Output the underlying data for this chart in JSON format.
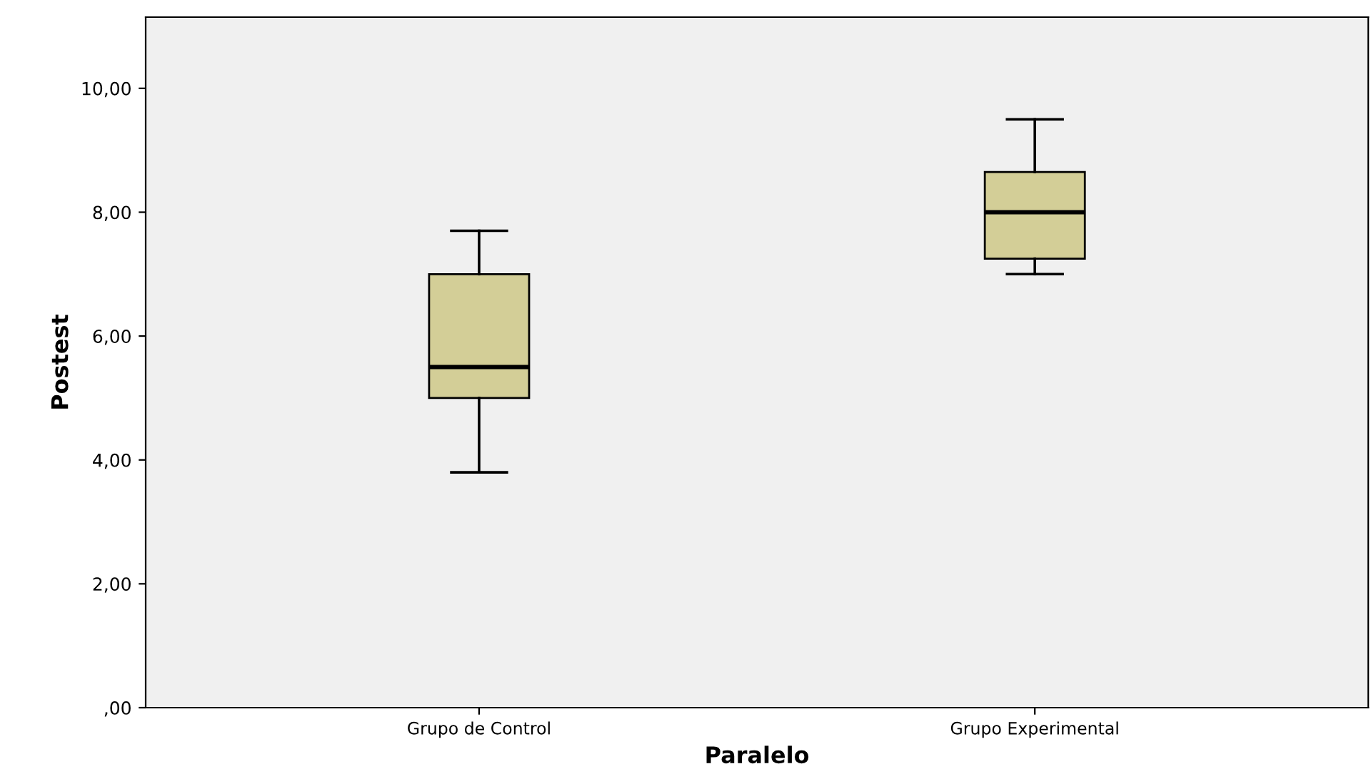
{
  "chart_data": {
    "type": "box",
    "xlabel": "Paralelo",
    "ylabel": "Postest",
    "categories": [
      "Grupo de Control",
      "Grupo Experimental"
    ],
    "series": [
      {
        "color": "#d3ce97",
        "boxes": [
          {
            "low": 3.8,
            "q1": 5.0,
            "median": 5.5,
            "q3": 7.0,
            "high": 7.7
          },
          {
            "low": 7.0,
            "q1": 7.25,
            "median": 8.0,
            "q3": 8.65,
            "high": 9.5
          }
        ]
      }
    ],
    "ylim": [
      0,
      11.15
    ],
    "yticks": [
      {
        "value": 0,
        "label": ",00"
      },
      {
        "value": 2,
        "label": "2,00"
      },
      {
        "value": 4,
        "label": "4,00"
      },
      {
        "value": 6,
        "label": "6,00"
      },
      {
        "value": 8,
        "label": "8,00"
      },
      {
        "value": 10,
        "label": "10,00"
      }
    ],
    "grid": false
  }
}
